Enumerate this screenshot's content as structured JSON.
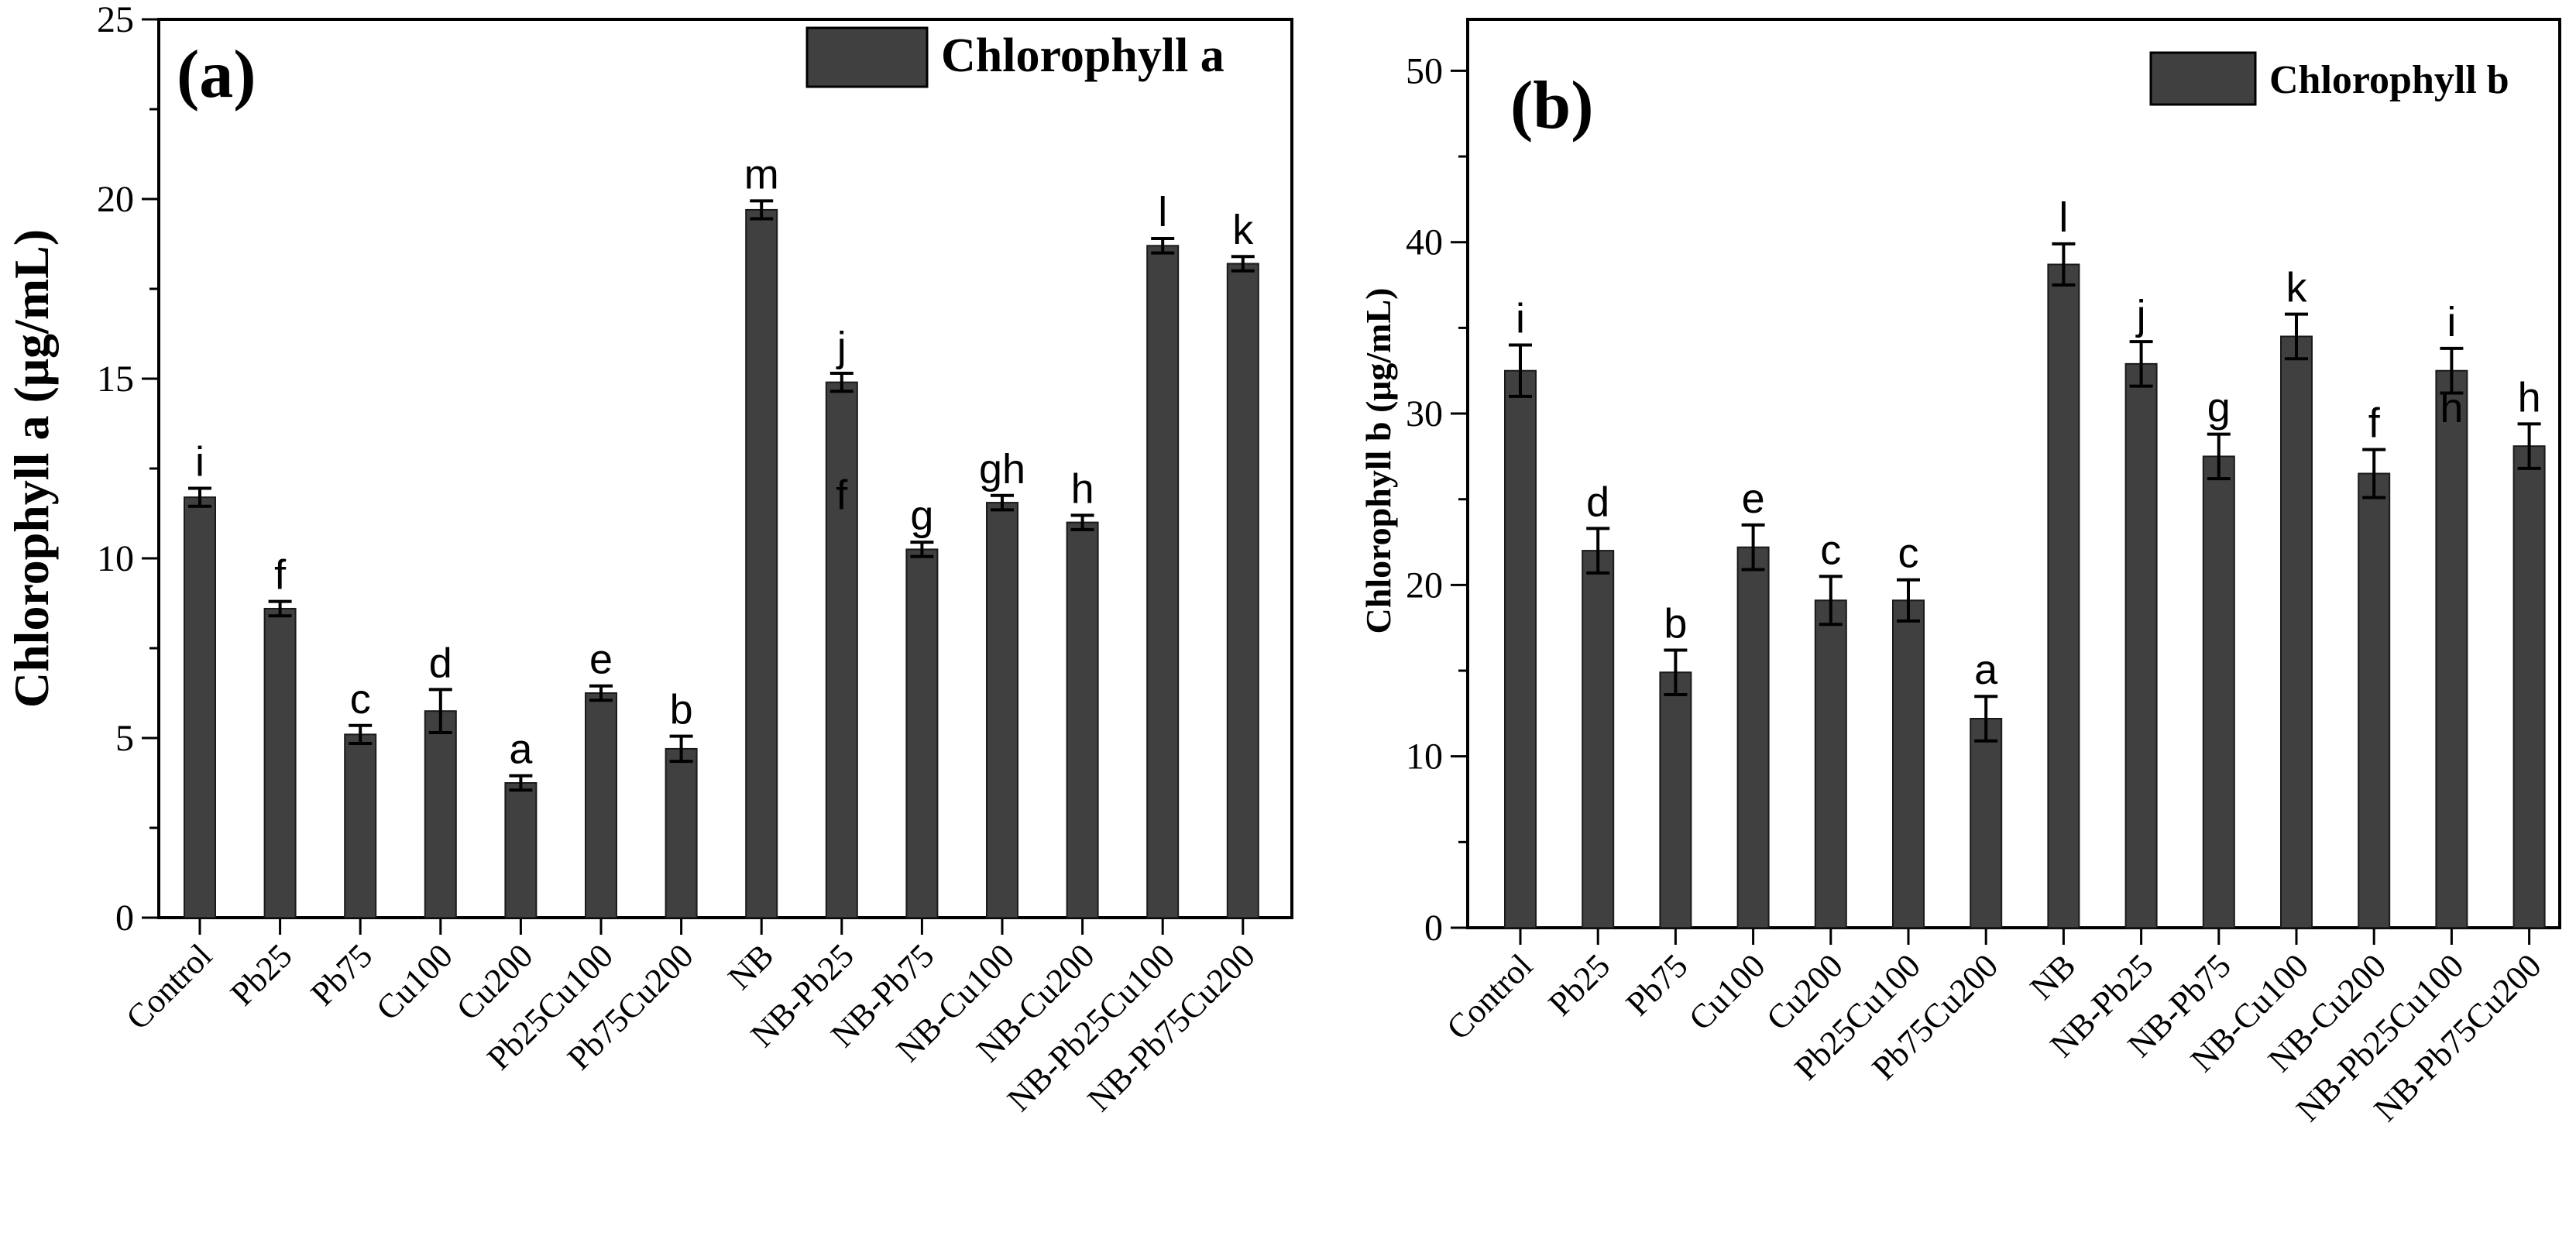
{
  "chart_data": [
    {
      "type": "bar",
      "panel_label": "(a)",
      "ylabel": "Chlorophyll a (μg/mL)",
      "legend": "Chlorophyll a",
      "legend_position": "top-right",
      "ylim": [
        0,
        25
      ],
      "yticks": [
        0,
        5,
        10,
        15,
        20,
        25
      ],
      "bar_color": "#404040",
      "categories": [
        "Control",
        "Pb25",
        "Pb75",
        "Cu100",
        "Cu200",
        "Pb25Cu100",
        "Pb75Cu200",
        "NB",
        "NB-Pb25",
        "NB-Pb75",
        "NB-Cu100",
        "NB-Cu200",
        "NB-Pb25Cu100",
        "NB-Pb75Cu200"
      ],
      "values": [
        11.7,
        8.6,
        5.1,
        5.75,
        3.75,
        6.25,
        4.7,
        19.7,
        14.9,
        10.25,
        11.55,
        11.0,
        18.7,
        18.2
      ],
      "errors": [
        0.25,
        0.2,
        0.25,
        0.6,
        0.2,
        0.2,
        0.35,
        0.25,
        0.25,
        0.2,
        0.2,
        0.2,
        0.2,
        0.2
      ],
      "significance": [
        "i",
        "f",
        "c",
        "d",
        "a",
        "e",
        "b",
        "m",
        "j",
        "g",
        "gh",
        "h",
        "l",
        "k"
      ],
      "annotations": [
        {
          "text": "f",
          "category": "NB-Pb25",
          "y": 11.8
        }
      ]
    },
    {
      "type": "bar",
      "panel_label": "(b)",
      "ylabel": "Chlorophyll b (μg/mL)",
      "legend": "Chlorophyll b",
      "legend_position": "top-right",
      "ylim": [
        0,
        53
      ],
      "yticks": [
        0,
        10,
        20,
        30,
        40,
        50
      ],
      "bar_color": "#404040",
      "categories": [
        "Control",
        "Pb25",
        "Pb75",
        "Cu100",
        "Cu200",
        "Pb25Cu100",
        "Pb75Cu200",
        "NB",
        "NB-Pb25",
        "NB-Pb75",
        "NB-Cu100",
        "NB-Cu200",
        "NB-Pb25Cu100",
        "NB-Pb75Cu200"
      ],
      "values": [
        32.5,
        22.0,
        14.9,
        22.2,
        19.1,
        19.1,
        12.2,
        38.7,
        32.9,
        27.5,
        34.5,
        26.5,
        32.5,
        28.1
      ],
      "errors": [
        1.5,
        1.3,
        1.3,
        1.3,
        1.4,
        1.2,
        1.3,
        1.2,
        1.3,
        1.3,
        1.3,
        1.4,
        1.3,
        1.3
      ],
      "significance": [
        "i",
        "d",
        "b",
        "e",
        "c",
        "c",
        "a",
        "l",
        "j",
        "g",
        "k",
        "f",
        "i",
        "h"
      ],
      "annotations": [
        {
          "text": "h",
          "category": "NB-Pb25Cu100",
          "y": 30.4
        }
      ]
    }
  ]
}
